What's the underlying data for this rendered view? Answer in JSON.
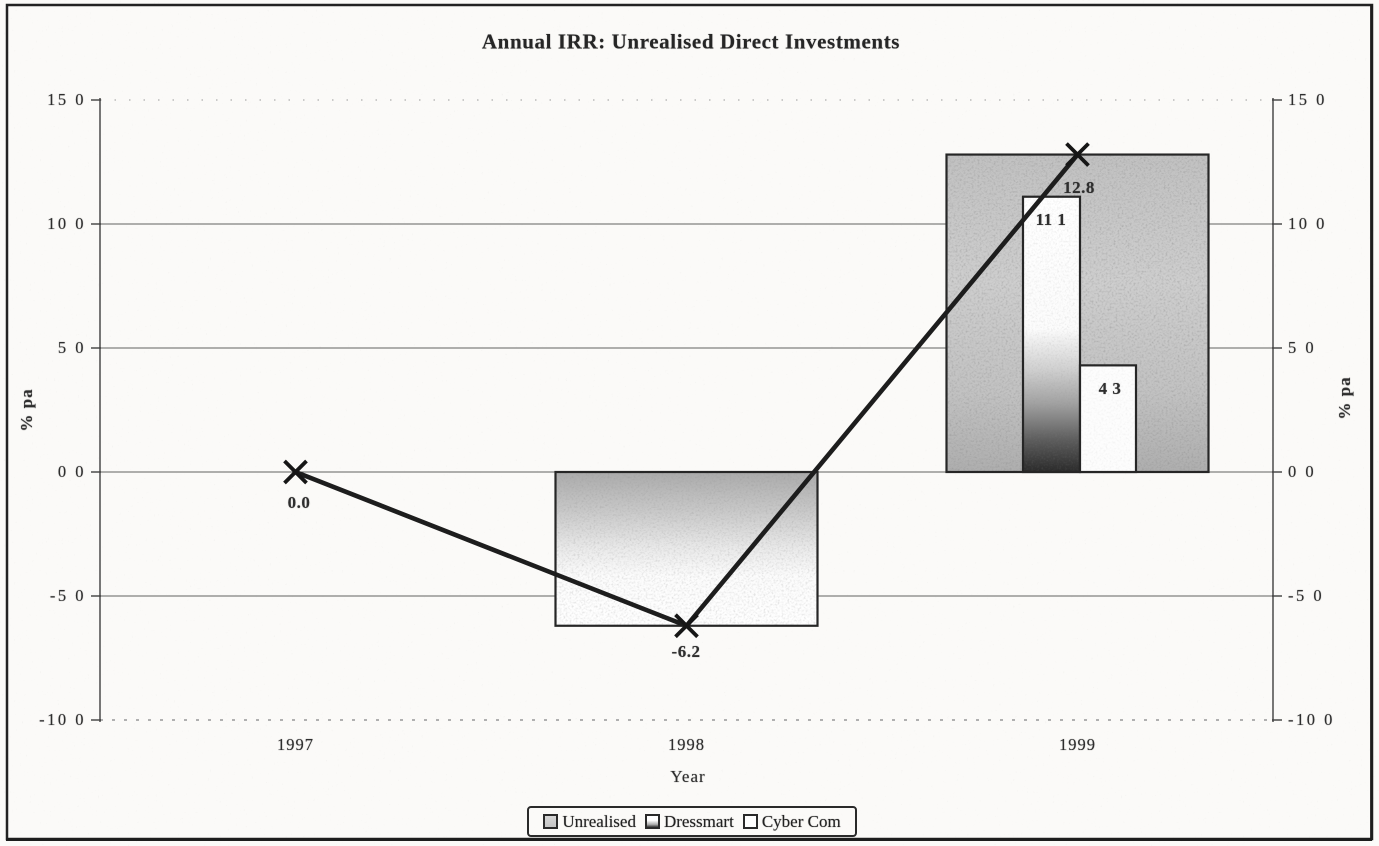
{
  "title": "Annual IRR: Unrealised Direct Investments",
  "axes": {
    "y_left_title": "% pa",
    "y_right_title": "% pa",
    "x_title": "Year",
    "y_tick_labels": [
      "15 0",
      "10 0",
      "5 0",
      "0 0",
      "-5 0",
      "-10 0"
    ],
    "y_tick_values": [
      15,
      10,
      5,
      0,
      -5,
      -10
    ],
    "x_tick_labels": [
      "1997",
      "1998",
      "1999"
    ]
  },
  "legend": {
    "items": [
      {
        "label": "Unrealised"
      },
      {
        "label": "Dressmart"
      },
      {
        "label": "Cyber Com"
      }
    ]
  },
  "chart_data": {
    "type": "bar",
    "subtype": "combo bar + line with x-markers, scanned grayscale",
    "title": "Annual IRR: Unrealised Direct Investments",
    "xlabel": "Year",
    "ylabel": "% pa",
    "ylim": [
      -10,
      15
    ],
    "ytick_step": 5,
    "grid": true,
    "legend_position": "bottom",
    "categories": [
      "1997",
      "1998",
      "1999"
    ],
    "series": [
      {
        "name": "Unrealised",
        "render": "wide-bar-and-line",
        "values": [
          0.0,
          -6.2,
          12.8
        ],
        "point_labels": [
          "0.0",
          "-6.2",
          "12.8"
        ]
      },
      {
        "name": "Dressmart",
        "render": "bar",
        "values": [
          null,
          null,
          11.1
        ],
        "point_labels": [
          null,
          null,
          "11 1"
        ]
      },
      {
        "name": "Cyber Com",
        "render": "bar",
        "values": [
          null,
          null,
          4.3
        ],
        "point_labels": [
          null,
          null,
          "4 3"
        ]
      }
    ],
    "colors": {
      "ink": "#222222",
      "grid": "#616161",
      "bar_gray": "#c0c0c0"
    }
  }
}
